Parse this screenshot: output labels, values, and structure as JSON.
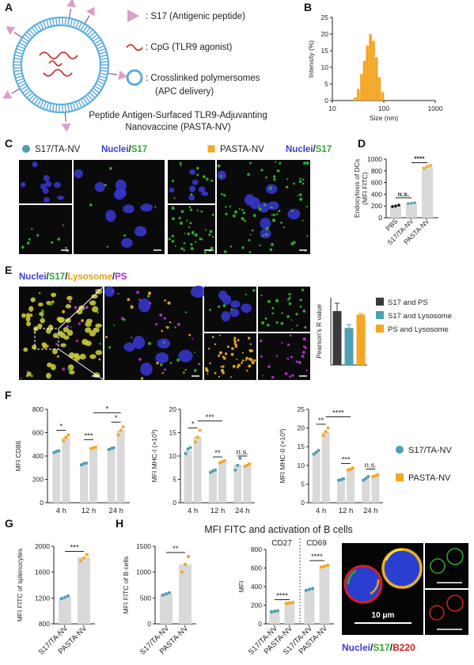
{
  "panel_labels": [
    "A",
    "B",
    "C",
    "D",
    "E",
    "F",
    "G",
    "H"
  ],
  "colors": {
    "teal": "#4d9fb3",
    "orange": "#f5a623",
    "bar_gray": "#d9d9d9",
    "dark_bar": "#3a3a3a",
    "nuclei_blue": "#3b3bd6",
    "s17_green": "#2fa82f",
    "lysosome_yellow": "#e0a020",
    "ps_magenta": "#b02cc8",
    "b220_red": "#d42020",
    "spike": "#d9a0c8",
    "cpg": "#c81e1e",
    "polymer": "#5aaadf"
  },
  "panelA": {
    "legend": [
      {
        "icon": "peptide-triangle",
        "text": ": S17 (Antigenic peptide)"
      },
      {
        "icon": "cpg-squiggle",
        "text": ": CpG (TLR9 agonist)"
      },
      {
        "icon": "polymersome-ring",
        "text": ": Crosslinked polymersomes"
      },
      {
        "icon": "",
        "text": "(APC delivery)"
      }
    ],
    "caption_line1": "Peptide Antigen-Surfaced TLR9-Adjuvanting",
    "caption_line2": "Nanovaccine (PASTA-NV)"
  },
  "panelC": {
    "legend_left": {
      "marker": "teal-dot",
      "name": "S17/TA-NV",
      "nuclei": "Nuclei",
      "sep": "/",
      "s17": "S17"
    },
    "legend_right": {
      "marker": "orange-square",
      "name": "PASTA-NV",
      "nuclei": "Nuclei",
      "sep": "/",
      "s17": "S17"
    }
  },
  "panelE": {
    "title_parts": [
      {
        "text": "Nuclei",
        "color": "#3b3bd6"
      },
      {
        "text": "/",
        "color": "#222222"
      },
      {
        "text": "S17",
        "color": "#2fa82f"
      },
      {
        "text": "/",
        "color": "#222222"
      },
      {
        "text": "Lysosome",
        "color": "#e0a020"
      },
      {
        "text": "/",
        "color": "#222222"
      },
      {
        "text": "PS",
        "color": "#b02cc8"
      }
    ]
  },
  "panelF_legend": [
    {
      "marker": "teal-dot",
      "name": "S17/TA-NV"
    },
    {
      "marker": "orange-square",
      "name": "PASTA-NV"
    }
  ],
  "panelH": {
    "title": "MFI FITC and activation of B cells",
    "scalebar_label": "10 μm",
    "micro_legend": [
      {
        "text": "Nuclei",
        "color": "#3b3bd6"
      },
      {
        "text": "/",
        "color": "#222222"
      },
      {
        "text": "S17",
        "color": "#2fa82f"
      },
      {
        "text": "/",
        "color": "#222222"
      },
      {
        "text": "B220",
        "color": "#d42020"
      }
    ]
  },
  "chart_data": [
    {
      "id": "B",
      "type": "bar",
      "xlabel": "Size (nm)",
      "ylabel": "Intensity (%)",
      "xscale": "log",
      "xlim": [
        10,
        1000
      ],
      "ylim": [
        0,
        25
      ],
      "xticks": [
        10,
        100,
        1000
      ],
      "yticks": [
        0,
        5,
        10,
        15,
        20,
        25
      ],
      "x": [
        28,
        32,
        37,
        42,
        48,
        55,
        63,
        72,
        82,
        95
      ],
      "values": [
        1,
        3.5,
        8,
        12,
        16.5,
        20,
        18,
        13,
        7,
        2.5
      ]
    },
    {
      "id": "D",
      "type": "bar",
      "ylabel": "Endocytosis of DCs (MFI FITC)",
      "ylim": [
        0,
        1000
      ],
      "yticks": [
        0,
        200,
        400,
        600,
        800,
        1000
      ],
      "categories": [
        "PBS",
        "S17/TA-NV",
        "PASTA-NV"
      ],
      "values": [
        205,
        250,
        870
      ],
      "points": [
        [
          190,
          200,
          215
        ],
        [
          240,
          250,
          255
        ],
        [
          845,
          875,
          890
        ]
      ],
      "annotations": [
        {
          "pair": [
            0,
            1
          ],
          "text": "n.s."
        },
        {
          "pair": [
            1,
            2
          ],
          "text": "****"
        }
      ]
    },
    {
      "id": "E",
      "type": "bar",
      "ylabel": "Pearson's R value",
      "ylim": [
        0,
        0.6
      ],
      "categories": [
        "S17 and PS",
        "S17 and Lysosome",
        "PS and Lysosome"
      ],
      "values": [
        0.48,
        0.33,
        0.45
      ],
      "errors": [
        0.07,
        0.03,
        0.01
      ],
      "legend": [
        "S17 and PS",
        "S17 and Lysosome",
        "PS and Lysosome"
      ]
    },
    {
      "id": "F1",
      "type": "bar",
      "ylabel": "MFI CD86",
      "ylim": [
        0,
        800
      ],
      "yticks": [
        0,
        200,
        400,
        600,
        800
      ],
      "categories": [
        "4 h",
        "12 h",
        "24 h"
      ],
      "series": [
        {
          "name": "S17/TA-NV",
          "values": [
            440,
            335,
            465
          ],
          "points": [
            [
              430,
              440,
              445
            ],
            [
              325,
              335,
              340
            ],
            [
              455,
              465,
              470
            ]
          ]
        },
        {
          "name": "PASTA-NV",
          "values": [
            560,
            470,
            620
          ],
          "points": [
            [
              530,
              560,
              580
            ],
            [
              465,
              470,
              475
            ],
            [
              580,
              620,
              650
            ]
          ]
        }
      ],
      "annotations": [
        {
          "pair": [
            "4 h:0",
            "4 h:1"
          ],
          "text": "*"
        },
        {
          "pair": [
            "12 h:0",
            "12 h:1"
          ],
          "text": "***"
        },
        {
          "pair": [
            "24 h:0",
            "24 h:1"
          ],
          "text": "*"
        },
        {
          "pair": [
            "12 h:1",
            "24 h:1"
          ],
          "text": "*"
        }
      ]
    },
    {
      "id": "F2",
      "type": "bar",
      "ylabel": "MFI MHC-I (×10³)",
      "ylim": [
        0,
        20
      ],
      "yticks": [
        0,
        5,
        10,
        15,
        20
      ],
      "categories": [
        "4 h",
        "12 h",
        "24 h"
      ],
      "series": [
        {
          "name": "S17/TA-NV",
          "values": [
            11.2,
            6.8,
            8.2
          ],
          "points": [
            [
              10.5,
              11.5,
              11.8
            ],
            [
              6.5,
              6.8,
              7.0
            ],
            [
              7.0,
              8.0,
              9.5
            ]
          ]
        },
        {
          "name": "PASTA-NV",
          "values": [
            14.2,
            8.8,
            8.0
          ],
          "points": [
            [
              13.0,
              14.0,
              15.5
            ],
            [
              8.6,
              8.8,
              9.0
            ],
            [
              7.8,
              8.0,
              8.3
            ]
          ]
        }
      ],
      "annotations": [
        {
          "pair": [
            "4 h:0",
            "4 h:1"
          ],
          "text": "*"
        },
        {
          "pair": [
            "4 h:1",
            "12 h:1"
          ],
          "text": "***"
        },
        {
          "pair": [
            "12 h:0",
            "12 h:1"
          ],
          "text": "**"
        },
        {
          "pair": [
            "24 h:0",
            "24 h:1"
          ],
          "text": "n.s."
        }
      ]
    },
    {
      "id": "F3",
      "type": "bar",
      "ylabel": "MFI MHC-II (×10³)",
      "ylim": [
        0,
        25
      ],
      "yticks": [
        0,
        5,
        10,
        15,
        20,
        25
      ],
      "categories": [
        "4 h",
        "12 h",
        "24 h"
      ],
      "series": [
        {
          "name": "S17/TA-NV",
          "values": [
            13.5,
            6.2,
            6.5
          ],
          "points": [
            [
              13.0,
              13.5,
              14.0
            ],
            [
              6.0,
              6.2,
              6.4
            ],
            [
              6.0,
              6.5,
              7.0
            ]
          ]
        },
        {
          "name": "PASTA-NV",
          "values": [
            19.0,
            9.0,
            7.2
          ],
          "points": [
            [
              18.0,
              19.0,
              20.0
            ],
            [
              8.8,
              9.0,
              9.3
            ],
            [
              7.0,
              7.2,
              7.5
            ]
          ]
        }
      ],
      "annotations": [
        {
          "pair": [
            "4 h:0",
            "4 h:1"
          ],
          "text": "**"
        },
        {
          "pair": [
            "4 h:1",
            "12 h:1"
          ],
          "text": "****"
        },
        {
          "pair": [
            "12 h:0",
            "12 h:1"
          ],
          "text": "***"
        },
        {
          "pair": [
            "24 h:0",
            "24 h:1"
          ],
          "text": "n.s."
        }
      ]
    },
    {
      "id": "G",
      "type": "bar",
      "ylabel": "MFI FITC of splenocytes",
      "ylim": [
        800,
        2000
      ],
      "yticks": [
        800,
        1200,
        1600,
        2000
      ],
      "categories": [
        "S17/TA-NV",
        "PASTA-NV"
      ],
      "values": [
        1210,
        1830
      ],
      "points": [
        [
          1190,
          1210,
          1230
        ],
        [
          1780,
          1820,
          1870
        ]
      ],
      "annotations": [
        {
          "pair": [
            0,
            1
          ],
          "text": "***"
        }
      ]
    },
    {
      "id": "H1",
      "type": "bar",
      "ylabel": "MFI FITC of B cells",
      "ylim": [
        0,
        1500
      ],
      "yticks": [
        0,
        500,
        1000,
        1500
      ],
      "categories": [
        "S17/TA-NV",
        "PASTA-NV"
      ],
      "values": [
        580,
        1150
      ],
      "points": [
        [
          555,
          580,
          600
        ],
        [
          1000,
          1150,
          1300
        ]
      ],
      "annotations": [
        {
          "pair": [
            0,
            1
          ],
          "text": "**"
        }
      ]
    },
    {
      "id": "H2",
      "type": "bar",
      "ylabel": "MFI",
      "ylim": [
        0,
        800
      ],
      "yticks": [
        0,
        200,
        400,
        600,
        800
      ],
      "groups": [
        "CD27",
        "CD69"
      ],
      "categories": [
        "S17/TA-NV",
        "PASTA-NV",
        "S17/TA-NV",
        "PASTA-NV"
      ],
      "values": [
        135,
        225,
        370,
        620
      ],
      "points": [
        [
          130,
          135,
          140
        ],
        [
          220,
          225,
          230
        ],
        [
          360,
          370,
          380
        ],
        [
          610,
          620,
          630
        ]
      ],
      "annotations": [
        {
          "pair": [
            0,
            1
          ],
          "text": "****"
        },
        {
          "pair": [
            2,
            3
          ],
          "text": "****"
        }
      ]
    }
  ]
}
